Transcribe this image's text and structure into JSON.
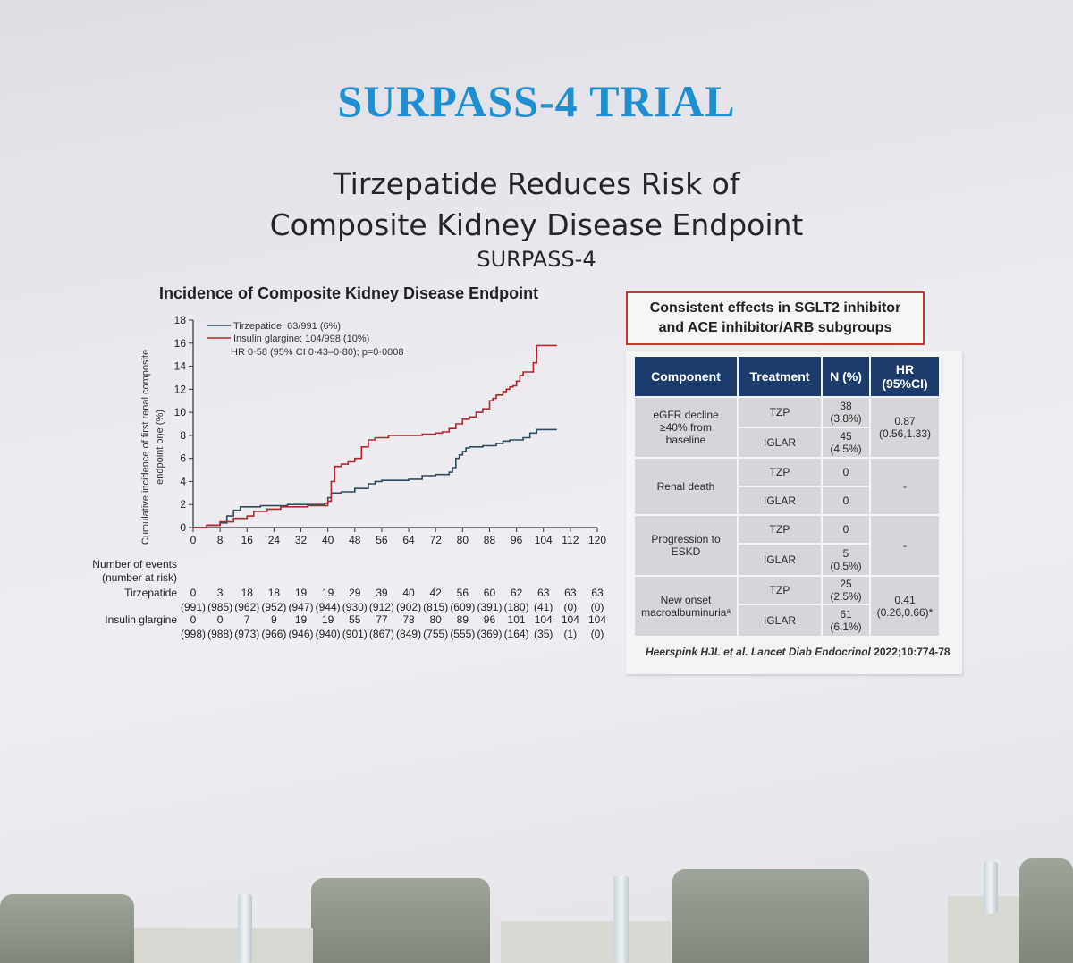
{
  "slide": {
    "title": "SURPASS-4 TRIAL",
    "subtitle_line1": "Tirzepatide Reduces Risk of",
    "subtitle_line2": "Composite Kidney Disease Endpoint",
    "subtitle_line3": "SURPASS-4"
  },
  "chart_data": {
    "type": "line",
    "title": "Incidence of Composite Kidney Disease Endpoint",
    "ylabel_line1": "Cumulative incidence of first renal composite",
    "ylabel_line2": "endpoint one (%)",
    "xlabel": "",
    "xlim": [
      0,
      120
    ],
    "ylim": [
      0,
      18
    ],
    "x_ticks": [
      0,
      8,
      16,
      24,
      32,
      40,
      48,
      56,
      64,
      72,
      80,
      88,
      96,
      104,
      112,
      120
    ],
    "y_ticks": [
      0,
      2,
      4,
      6,
      8,
      10,
      12,
      14,
      16,
      18
    ],
    "legend": {
      "tzp": "Tirzepatide: 63/991 (6%)",
      "igl": "Insulin glargine: 104/998 (10%)",
      "hr": "HR 0·58 (95% CI 0·43–0·80); p=0·0008",
      "position": "top-left"
    },
    "colors": {
      "tzp": "#2b4d5f",
      "igl": "#b3262e"
    },
    "series": [
      {
        "name": "Tirzepatide: 63/991 (6%)",
        "x": [
          0,
          4,
          8,
          10,
          12,
          14,
          17,
          20,
          24,
          28,
          32,
          36,
          39,
          40,
          41,
          42,
          44,
          48,
          52,
          54,
          56,
          60,
          64,
          68,
          72,
          74,
          76,
          77,
          78,
          79,
          80,
          81,
          82,
          84,
          86,
          88,
          90,
          92,
          94,
          96,
          98,
          100,
          102,
          104,
          108
        ],
        "y": [
          0,
          0.2,
          0.4,
          1.0,
          1.5,
          1.8,
          1.8,
          1.9,
          1.9,
          2.0,
          2.0,
          2.0,
          2.1,
          2.6,
          3.0,
          3.0,
          3.1,
          3.4,
          3.8,
          4.0,
          4.1,
          4.1,
          4.2,
          4.5,
          4.6,
          4.6,
          4.8,
          5.2,
          6.0,
          6.3,
          6.6,
          6.9,
          7.0,
          7.0,
          7.1,
          7.1,
          7.3,
          7.5,
          7.6,
          7.6,
          7.8,
          8.2,
          8.5,
          8.5,
          8.5
        ]
      },
      {
        "name": "Insulin glargine: 104/998 (10%)",
        "x": [
          0,
          4,
          8,
          12,
          16,
          18,
          22,
          26,
          30,
          34,
          38,
          40,
          41,
          42,
          44,
          46,
          48,
          50,
          52,
          54,
          58,
          64,
          68,
          72,
          74,
          76,
          78,
          80,
          82,
          84,
          86,
          88,
          89,
          90,
          92,
          93,
          94,
          95,
          96,
          97,
          98,
          100,
          101,
          102,
          104,
          108
        ],
        "y": [
          0,
          0.2,
          0.5,
          0.8,
          1.0,
          1.4,
          1.6,
          1.8,
          1.8,
          1.9,
          1.9,
          2.3,
          4.0,
          5.3,
          5.5,
          5.7,
          6.0,
          7.0,
          7.6,
          7.8,
          8.0,
          8.0,
          8.1,
          8.2,
          8.3,
          8.6,
          9.0,
          9.4,
          9.6,
          10.0,
          10.3,
          11.0,
          11.2,
          11.5,
          11.8,
          12.0,
          12.2,
          12.3,
          12.7,
          13.2,
          13.5,
          13.5,
          14.3,
          15.8,
          15.8,
          15.8
        ]
      }
    ],
    "risk_table": {
      "header_line1": "Number of events",
      "header_line2": "(number at risk)",
      "rows": [
        {
          "label": "Tirzepatide",
          "events": [
            "0",
            "3",
            "18",
            "18",
            "19",
            "19",
            "29",
            "39",
            "40",
            "42",
            "56",
            "60",
            "62",
            "63",
            "63",
            "63"
          ],
          "at_risk": [
            "(991)",
            "(985)",
            "(962)",
            "(952)",
            "(947)",
            "(944)",
            "(930)",
            "(912)",
            "(902)",
            "(815)",
            "(609)",
            "(391)",
            "(180)",
            "(41)",
            "(0)",
            "(0)"
          ]
        },
        {
          "label": "Insulin glargine",
          "events": [
            "0",
            "0",
            "7",
            "9",
            "19",
            "19",
            "55",
            "77",
            "78",
            "80",
            "89",
            "96",
            "101",
            "104",
            "104",
            "104"
          ],
          "at_risk": [
            "(998)",
            "(988)",
            "(973)",
            "(966)",
            "(946)",
            "(940)",
            "(901)",
            "(867)",
            "(849)",
            "(755)",
            "(555)",
            "(369)",
            "(164)",
            "(35)",
            "(1)",
            "(0)"
          ]
        }
      ]
    }
  },
  "callout": {
    "line1": "Consistent effects in SGLT2 inhibitor",
    "line2": "and ACE inhibitor/ARB subgroups"
  },
  "table": {
    "headers": [
      "Component",
      "Treatment",
      "N (%)",
      "HR",
      "(95%CI)"
    ],
    "rows": [
      {
        "component": [
          "eGFR decline",
          "≥40% from",
          "baseline"
        ],
        "tzp": [
          "38",
          "(3.8%)"
        ],
        "iglar": [
          "45",
          "(4.5%)"
        ],
        "hr": [
          "0.87",
          "(0.56,1.33)"
        ]
      },
      {
        "component": [
          "Renal death"
        ],
        "tzp": [
          "0"
        ],
        "iglar": [
          "0"
        ],
        "hr": [
          "-"
        ]
      },
      {
        "component": [
          "Progression to",
          "ESKD"
        ],
        "tzp": [
          "0"
        ],
        "iglar": [
          "5",
          "(0.5%)"
        ],
        "hr": [
          "-"
        ]
      },
      {
        "component": [
          "New onset",
          "macroalbuminuriaᵃ"
        ],
        "tzp": [
          "25",
          "(2.5%)"
        ],
        "iglar": [
          "61",
          "(6.1%)"
        ],
        "hr": [
          "0.41",
          "(0.26,0.66)*"
        ]
      }
    ],
    "treatment_tzp": "TZP",
    "treatment_iglar": "IGLAR"
  },
  "citation": {
    "authors": "Heerspink HJL et al.",
    "journal": "Lancet Diab Endocrinol",
    "ref": "2022;10:774-78"
  }
}
